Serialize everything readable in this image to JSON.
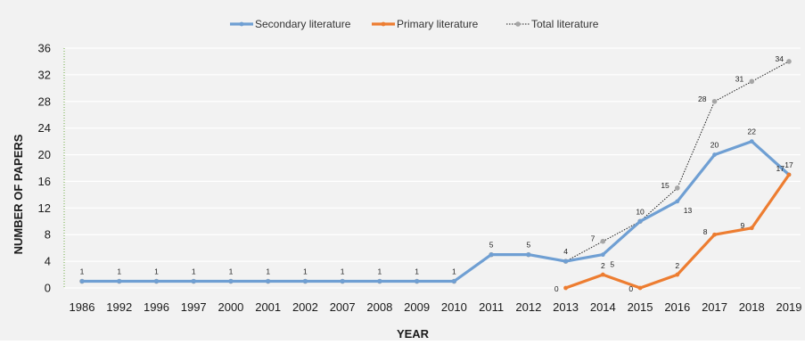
{
  "chart_data": {
    "type": "line",
    "title": "",
    "xlabel": "YEAR",
    "ylabel": "NUMBER OF PAPERS",
    "ylim": [
      0,
      36
    ],
    "yticks": [
      0,
      4,
      8,
      12,
      16,
      20,
      24,
      28,
      32,
      36
    ],
    "grid": true,
    "legend_position": "top",
    "categories": [
      "1986",
      "1992",
      "1996",
      "1997",
      "2000",
      "2001",
      "2002",
      "2007",
      "2008",
      "2009",
      "2010",
      "2011",
      "2012",
      "2013",
      "2014",
      "2015",
      "2016",
      "2017",
      "2018",
      "2019"
    ],
    "series": [
      {
        "name": "Secondary literature",
        "color": "#6f9fd3",
        "style": "solid",
        "values": [
          1,
          1,
          1,
          1,
          1,
          1,
          1,
          1,
          1,
          1,
          1,
          5,
          5,
          4,
          5,
          10,
          13,
          20,
          22,
          17
        ],
        "labels": [
          "1",
          "1",
          "1",
          "1",
          "1",
          "1",
          "1",
          "1",
          "1",
          "1",
          "1",
          "5",
          "5",
          "4",
          "5",
          "10",
          "13",
          "20",
          "22",
          "17"
        ]
      },
      {
        "name": "Primary literature",
        "color": "#ed7d31",
        "style": "solid",
        "values": [
          null,
          null,
          null,
          null,
          null,
          null,
          null,
          null,
          null,
          null,
          null,
          null,
          null,
          0,
          2,
          0,
          2,
          8,
          9,
          17
        ],
        "labels": [
          null,
          null,
          null,
          null,
          null,
          null,
          null,
          null,
          null,
          null,
          null,
          null,
          null,
          "0",
          "2",
          "0",
          "2",
          "8",
          "9",
          "17"
        ]
      },
      {
        "name": "Total literature",
        "color": "#a6a6a6",
        "style": "dotted",
        "values": [
          1,
          1,
          1,
          1,
          1,
          1,
          1,
          1,
          1,
          1,
          1,
          5,
          5,
          4,
          7,
          10,
          15,
          28,
          31,
          34
        ],
        "labels": [
          null,
          null,
          null,
          null,
          null,
          null,
          null,
          null,
          null,
          null,
          null,
          null,
          null,
          null,
          "7",
          null,
          "15",
          "28",
          "31",
          "34"
        ]
      }
    ]
  }
}
